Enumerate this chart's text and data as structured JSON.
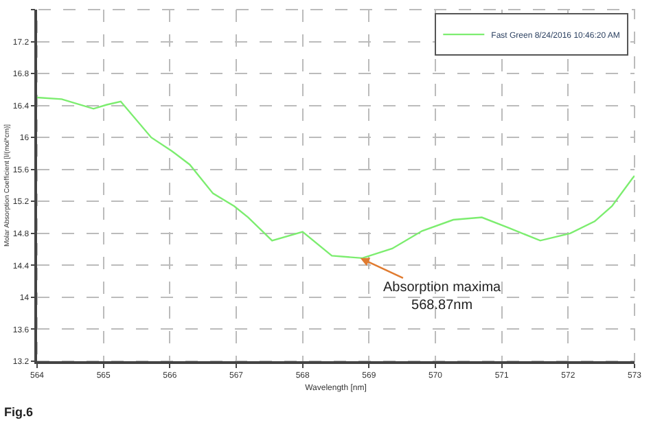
{
  "chart_data": {
    "type": "line",
    "xlabel": "Wavelength [nm]",
    "ylabel": "Molar Absorption Coefficient [l/(mol*cm)]",
    "x": [
      564,
      564.37,
      564.85,
      565.05,
      565.26,
      565.72,
      566.03,
      566.3,
      566.65,
      566.97,
      567.18,
      567.54,
      568.0,
      568.44,
      568.9,
      569.35,
      569.8,
      570.27,
      570.7,
      571.1,
      571.58,
      572.03,
      572.4,
      572.66,
      572.97,
      573
    ],
    "series": [
      {
        "name": "Fast Green 8/24/2016 10:46:20 AM",
        "color": "#7ced6f",
        "values": [
          16.5,
          16.48,
          16.36,
          16.41,
          16.45,
          16.0,
          15.83,
          15.66,
          15.3,
          15.14,
          15.0,
          14.71,
          14.82,
          14.52,
          14.49,
          14.61,
          14.83,
          14.97,
          15.0,
          14.87,
          14.71,
          14.8,
          14.95,
          15.14,
          15.49,
          15.52
        ]
      }
    ],
    "xlim": [
      564,
      573
    ],
    "xticks": [
      564,
      565,
      566,
      567,
      568,
      569,
      570,
      571,
      572,
      573
    ],
    "ylim": [
      13.2,
      17.6
    ],
    "yticks": [
      13.2,
      13.6,
      14,
      14.4,
      14.8,
      15.2,
      15.6,
      16,
      16.4,
      16.8,
      17.2,
      {
        "value": 17.6,
        "label": null
      }
    ],
    "grid": true,
    "legend": "top right",
    "marker": "none",
    "line_style": "solid",
    "annotations": [
      {
        "text": "Absorption maxima\n568.87nm",
        "x": 568.87,
        "y": 14.49
      },
      "Fig.6"
    ]
  }
}
